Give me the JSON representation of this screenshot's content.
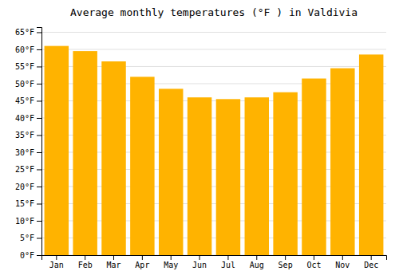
{
  "chart_data": {
    "type": "bar",
    "title": "Average monthly temperatures (°F ) in Valdivia",
    "categories": [
      "Jan",
      "Feb",
      "Mar",
      "Apr",
      "May",
      "Jun",
      "Jul",
      "Aug",
      "Sep",
      "Oct",
      "Nov",
      "Dec"
    ],
    "values": [
      61,
      59.5,
      56.5,
      52,
      48.5,
      46,
      45.5,
      46,
      47.5,
      51.5,
      54.5,
      58.5
    ],
    "color": "#FFB300",
    "ylim": [
      0,
      66.5
    ],
    "yticks": [
      {
        "value": 0,
        "label": "0°F"
      },
      {
        "value": 5,
        "label": "5°F"
      },
      {
        "value": 10,
        "label": "10°F"
      },
      {
        "value": 15,
        "label": "15°F"
      },
      {
        "value": 20,
        "label": "20°F"
      },
      {
        "value": 25,
        "label": "25°F"
      },
      {
        "value": 30,
        "label": "30°F"
      },
      {
        "value": 35,
        "label": "35°F"
      },
      {
        "value": 40,
        "label": "40°F"
      },
      {
        "value": 45,
        "label": "45°F"
      },
      {
        "value": 50,
        "label": "50°F"
      },
      {
        "value": 55,
        "label": "55°F"
      },
      {
        "value": 60,
        "label": "60°F"
      },
      {
        "value": 65,
        "label": "65°F"
      }
    ],
    "grid": true
  }
}
